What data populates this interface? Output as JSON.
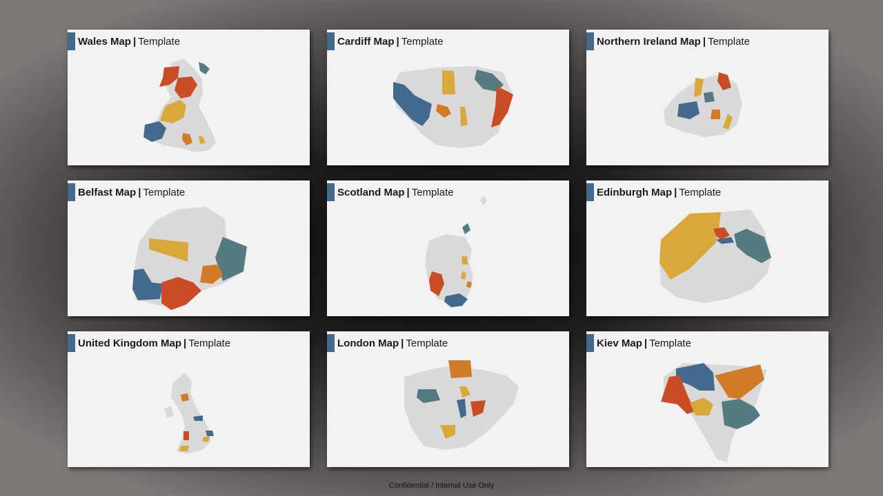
{
  "colors": {
    "blue": "#436a8d",
    "red": "#c94c24",
    "gold": "#d8a93a",
    "orange": "#d17a28",
    "teal": "#547b81",
    "land": "#d9d9d9",
    "card_bg": "#f2f2f2"
  },
  "slides": [
    {
      "name": "Wales Map",
      "suffix": "Template",
      "icon": "wales-map-icon"
    },
    {
      "name": "Cardiff Map",
      "suffix": "Template",
      "icon": "cardiff-map-icon"
    },
    {
      "name": "Northern Ireland Map",
      "suffix": "Template",
      "icon": "northern-ireland-map-icon"
    },
    {
      "name": "Belfast Map",
      "suffix": "Template",
      "icon": "belfast-map-icon"
    },
    {
      "name": "Scotland Map",
      "suffix": "Template",
      "icon": "scotland-map-icon"
    },
    {
      "name": "Edinburgh Map",
      "suffix": "Template",
      "icon": "edinburgh-map-icon"
    },
    {
      "name": "United Kingdom Map",
      "suffix": "Template",
      "icon": "united-kingdom-map-icon"
    },
    {
      "name": "London Map",
      "suffix": "Template",
      "icon": "london-map-icon"
    },
    {
      "name": "Kiev Map",
      "suffix": "Template",
      "icon": "kiev-map-icon"
    }
  ],
  "footer": "Confidential / Internal Use Only"
}
